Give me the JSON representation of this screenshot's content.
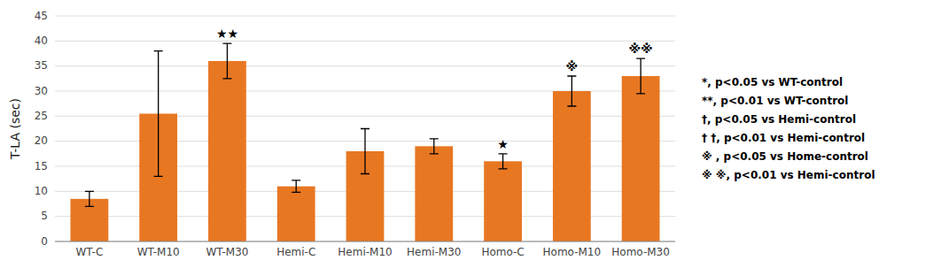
{
  "chart_data": {
    "type": "bar",
    "categories": [
      "WT-C",
      "WT-M10",
      "WT-M30",
      "Hemi-C",
      "Hemi-M10",
      "Hemi-M30",
      "Homo-C",
      "Homo-M10",
      "Homo-M30"
    ],
    "values": [
      8.5,
      25.5,
      36.0,
      11.0,
      18.0,
      19.0,
      16.0,
      30.0,
      33.0
    ],
    "errors": [
      1.5,
      12.5,
      3.5,
      1.2,
      4.5,
      1.5,
      1.5,
      3.0,
      3.5
    ],
    "color": "#E87722",
    "ylabel": "T-LA (sec)",
    "ylim": [
      0,
      45
    ],
    "yticks": [
      0,
      5,
      10,
      15,
      20,
      25,
      30,
      35,
      40,
      45
    ],
    "grid": true,
    "annotations": [
      {
        "category": "WT-M30",
        "text": "★★"
      },
      {
        "category": "Homo-C",
        "text": "★"
      },
      {
        "category": "Homo-M10",
        "text": "※"
      },
      {
        "category": "Homo-M30",
        "text": "※※"
      }
    ],
    "notes": [
      "*, p<0.05 vs WT-control",
      "**, p<0.01 vs WT-control",
      "†, p<0.05 vs Hemi-control",
      "† †, p<0.01 vs Hemi-control",
      "※ , p<0.05 vs Home-control",
      "※ ※, p<0.01 vs Hemi-control"
    ]
  }
}
